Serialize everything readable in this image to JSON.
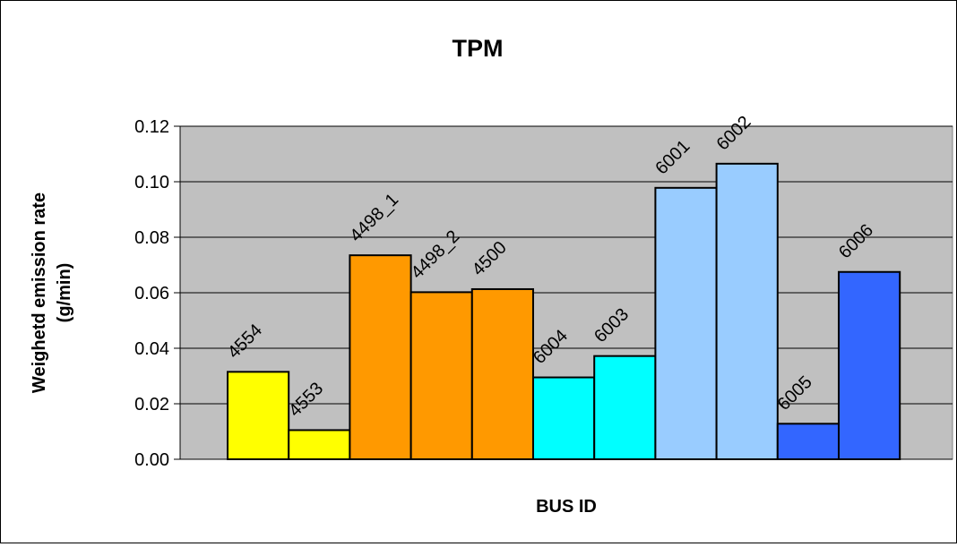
{
  "chart_data": {
    "type": "bar",
    "title": "TPM",
    "xlabel": "BUS ID",
    "ylabel_line1": "Weighetd emission rate",
    "ylabel_line2": "(g/min)",
    "ylim": [
      0,
      0.12
    ],
    "yticks": [
      "0.00",
      "0.02",
      "0.04",
      "0.06",
      "0.08",
      "0.10",
      "0.12"
    ],
    "grid": true,
    "plot_background": "#c0c0c0",
    "categories": [
      "4554",
      "4553",
      "4498_1",
      "4498_2",
      "4500",
      "6004",
      "6003",
      "6001",
      "6002",
      "6005",
      "6006"
    ],
    "values": [
      0.0315,
      0.0105,
      0.0735,
      0.0602,
      0.0613,
      0.0295,
      0.0372,
      0.0978,
      0.1065,
      0.0128,
      0.0675
    ],
    "colors": [
      "#ffff00",
      "#ffff00",
      "#ff9900",
      "#ff9900",
      "#ff9900",
      "#00ffff",
      "#00ffff",
      "#99ccff",
      "#99ccff",
      "#3366ff",
      "#3366ff"
    ]
  }
}
